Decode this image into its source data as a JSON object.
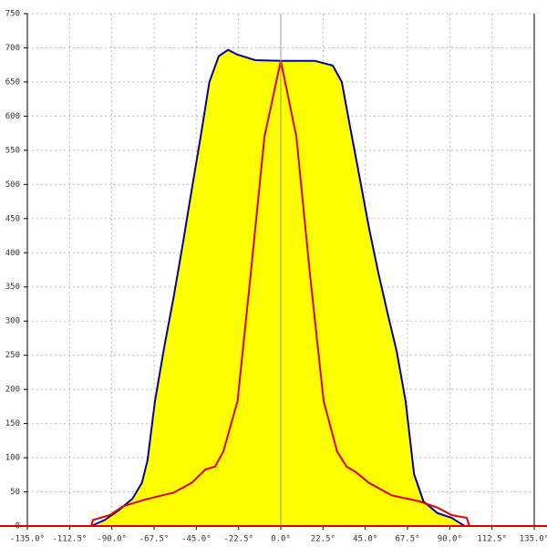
{
  "chart_data": {
    "type": "line",
    "xlim": [
      -135,
      135
    ],
    "ylim": [
      0,
      750
    ],
    "xticks": [
      {
        "value": -135,
        "label": "-135.0°"
      },
      {
        "value": -112.5,
        "label": "-112.5°"
      },
      {
        "value": -90,
        "label": "-90.0°"
      },
      {
        "value": -67.5,
        "label": "-67.5°"
      },
      {
        "value": -45,
        "label": "-45.0°"
      },
      {
        "value": -22.5,
        "label": "-22.5°"
      },
      {
        "value": 0,
        "label": "0.0°"
      },
      {
        "value": 22.5,
        "label": "22.5°"
      },
      {
        "value": 45,
        "label": "45.0°"
      },
      {
        "value": 67.5,
        "label": "67.5°"
      },
      {
        "value": 90,
        "label": "90.0°"
      },
      {
        "value": 112.5,
        "label": "112.5°"
      },
      {
        "value": 135,
        "label": "135.0°"
      }
    ],
    "yticks": [
      0,
      50,
      100,
      150,
      200,
      250,
      300,
      350,
      400,
      450,
      500,
      550,
      600,
      650,
      700,
      750
    ],
    "grid": true,
    "series": [
      {
        "color": "#0000aa",
        "fill": "#ffff00",
        "x": [
          -101,
          -93.7,
          -86.4,
          -79,
          -74,
          -71,
          -67,
          -62,
          -57,
          -52,
          -47.6,
          -42.7,
          -38,
          -33,
          -28,
          -23,
          -13.6,
          0,
          18,
          27.7,
          32.5,
          37,
          42,
          47,
          52,
          57,
          61.7,
          66.5,
          71,
          76,
          83.5,
          91,
          98
        ],
        "values": [
          0,
          9,
          23,
          40,
          63,
          96,
          183,
          263,
          336,
          416,
          490,
          570,
          650,
          688,
          697,
          690,
          682,
          681,
          681,
          674,
          650,
          583,
          510,
          436,
          370,
          310,
          256,
          183,
          76,
          36,
          19,
          12,
          0
        ]
      },
      {
        "color": "#dd0000",
        "x": [
          -101,
          -100,
          -91,
          -84,
          -72,
          -57,
          -47.6,
          -40,
          -35,
          -30.6,
          -23,
          -16,
          -8.7,
          0,
          8.3,
          15.5,
          22.8,
          30,
          35,
          40,
          47,
          59,
          74,
          83.5,
          91,
          99,
          100.5
        ],
        "values": [
          0,
          9,
          16,
          29,
          39,
          49,
          63,
          83,
          87,
          109,
          183,
          370,
          570,
          681,
          570,
          370,
          183,
          109,
          87,
          79,
          63,
          45,
          36,
          27,
          16,
          12,
          0
        ]
      }
    ]
  }
}
